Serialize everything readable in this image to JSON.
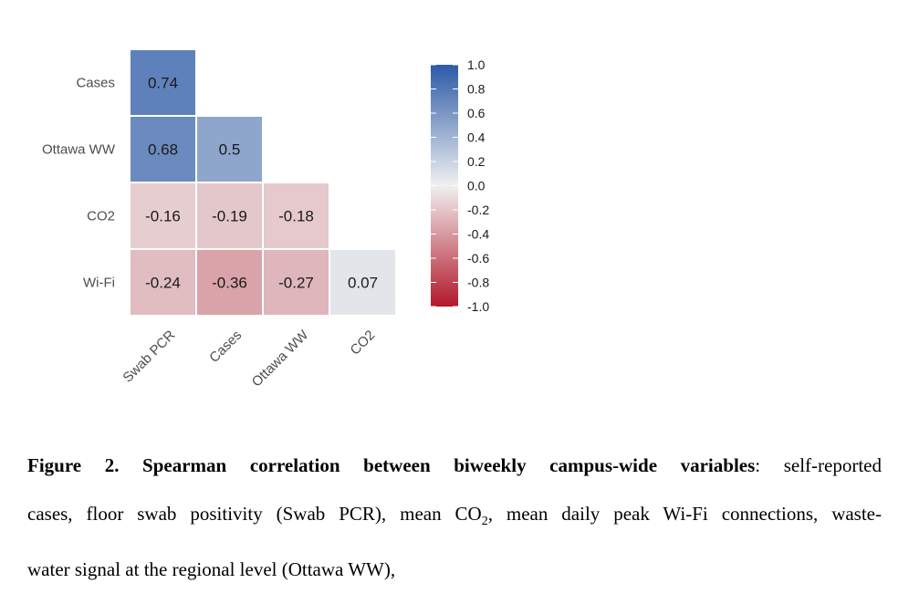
{
  "chart_data": {
    "type": "heatmap",
    "rows": [
      "Cases",
      "Ottawa WW",
      "CO2",
      "Wi-Fi"
    ],
    "columns": [
      "Swab PCR",
      "Cases",
      "Ottawa WW",
      "CO2"
    ],
    "values": [
      [
        0.74,
        null,
        null,
        null
      ],
      [
        0.68,
        0.5,
        null,
        null
      ],
      [
        -0.16,
        -0.19,
        -0.18,
        null
      ],
      [
        -0.24,
        -0.36,
        -0.27,
        0.07
      ]
    ],
    "cell_labels": [
      [
        "0.74",
        "",
        "",
        ""
      ],
      [
        "0.68",
        "0.5",
        "",
        ""
      ],
      [
        "-0.16",
        "-0.19",
        "-0.18",
        ""
      ],
      [
        "-0.24",
        "-0.36",
        "-0.27",
        "0.07"
      ]
    ],
    "color_scale": {
      "low_color": "#b2182b",
      "mid_color": "#f0f0f0",
      "high_color": "#2c5aa8",
      "range": [
        -1.0,
        1.0
      ]
    },
    "colorbar_ticks": [
      "1.0",
      "0.8",
      "0.6",
      "0.4",
      "0.2",
      "0.0",
      "-0.2",
      "-0.4",
      "-0.6",
      "-0.8",
      "-1.0"
    ]
  },
  "caption": {
    "bold": "Figure 2. Spearman correlation between biweekly campus-wide variables",
    "line1_rest": ": self-reported",
    "line2_a": "cases, floor swab positivity (Swab PCR), mean CO",
    "line2_sub": "2",
    "line2_b": ", mean daily peak Wi-Fi connections, waste-",
    "line3": "water signal at the regional level (Ottawa WW),"
  }
}
